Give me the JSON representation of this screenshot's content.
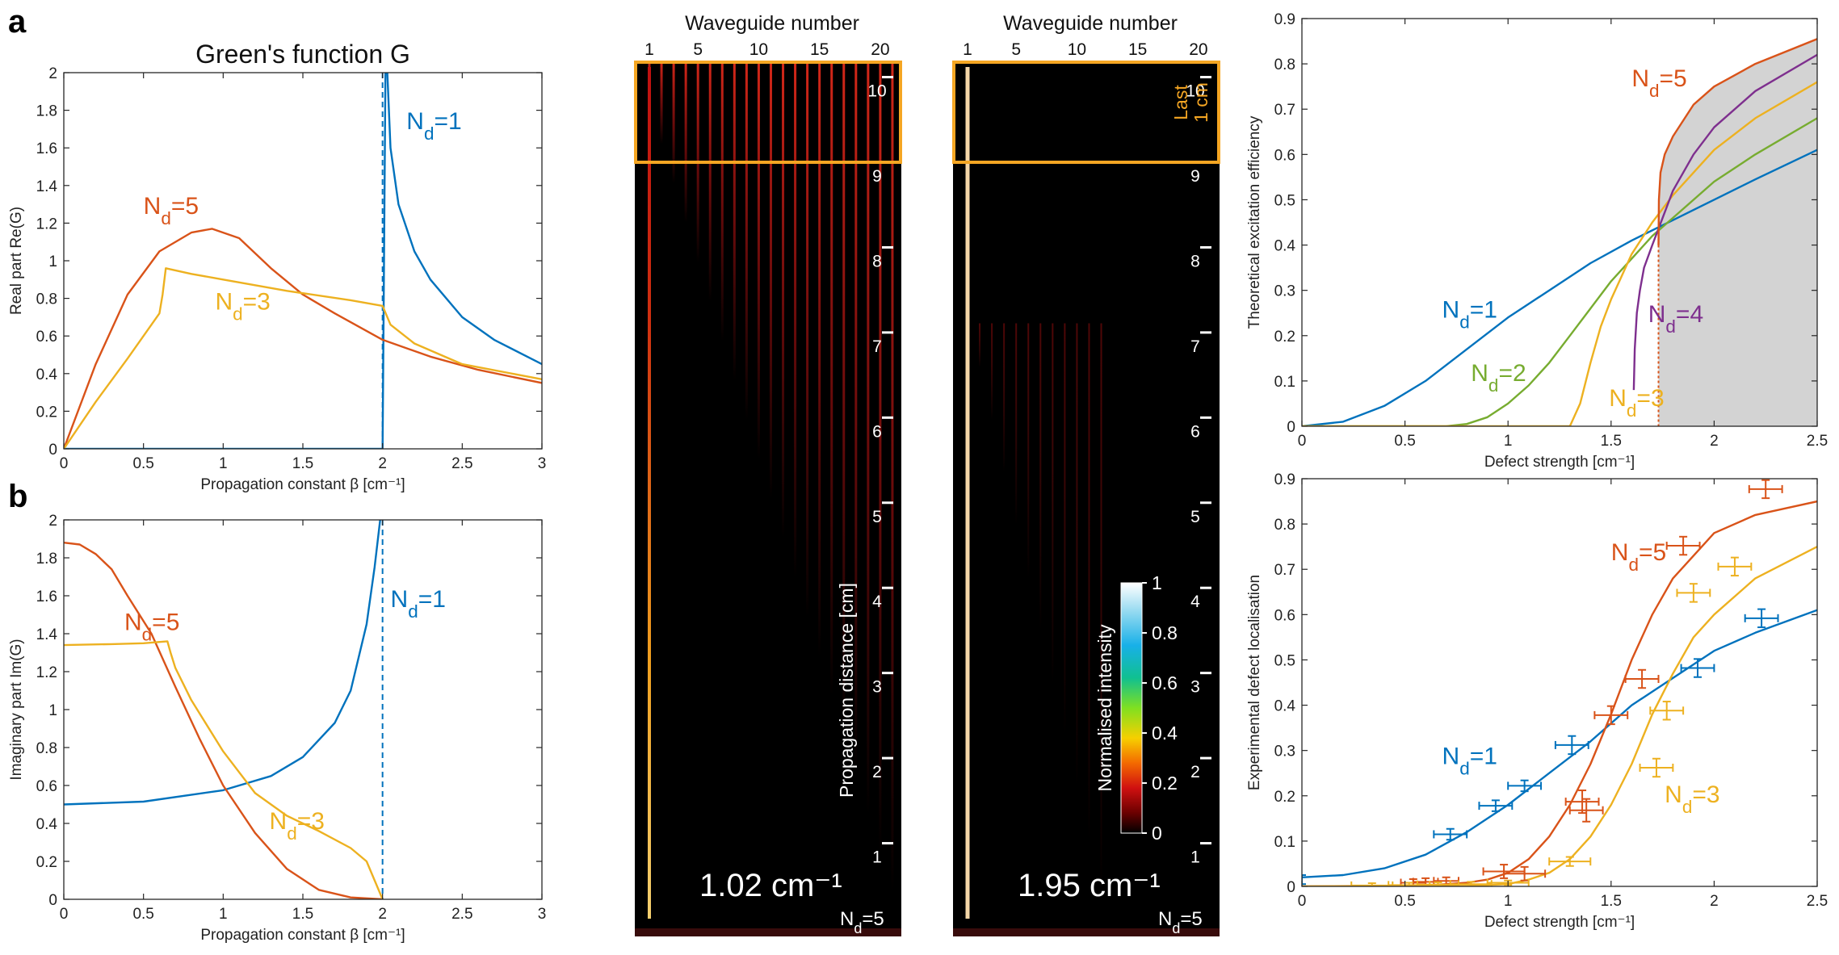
{
  "panel_labels": {
    "a": "a",
    "b": "b"
  },
  "chart_data": [
    {
      "id": "realG",
      "type": "line",
      "title": "Green's function G",
      "xlabel": "Propagation constant β [cm⁻¹]",
      "ylabel": "Real part Re(G)",
      "xlim": [
        0,
        3
      ],
      "ylim": [
        0,
        2
      ],
      "xticks": [
        0,
        0.5,
        1,
        1.5,
        2,
        2.5,
        3
      ],
      "yticks": [
        0,
        0.2,
        0.4,
        0.6,
        0.8,
        1,
        1.2,
        1.4,
        1.6,
        1.8,
        2
      ],
      "vline": {
        "x": 2,
        "color": "#0072bd"
      },
      "series": [
        {
          "name": "Nd=1",
          "color": "#0072bd",
          "x": [
            0,
            2,
            2.02,
            2.05,
            2.1,
            2.2,
            2.3,
            2.5,
            2.7,
            3
          ],
          "y": [
            0,
            0,
            2.2,
            1.6,
            1.3,
            1.05,
            0.9,
            0.7,
            0.58,
            0.45
          ]
        },
        {
          "name": "Nd=5",
          "color": "#d95319",
          "x": [
            0,
            0.2,
            0.4,
            0.6,
            0.8,
            0.93,
            1.1,
            1.3,
            1.5,
            1.7,
            2,
            2.3,
            2.6,
            3
          ],
          "y": [
            0,
            0.45,
            0.82,
            1.05,
            1.15,
            1.17,
            1.12,
            0.96,
            0.82,
            0.72,
            0.58,
            0.49,
            0.42,
            0.35
          ]
        },
        {
          "name": "Nd=3",
          "color": "#edb120",
          "x": [
            0,
            0.2,
            0.4,
            0.6,
            0.62,
            0.64,
            0.8,
            1,
            1.4,
            1.8,
            2,
            2.05,
            2.2,
            2.5,
            3
          ],
          "y": [
            0,
            0.25,
            0.48,
            0.72,
            0.82,
            0.96,
            0.93,
            0.9,
            0.84,
            0.79,
            0.76,
            0.66,
            0.56,
            0.45,
            0.37
          ]
        }
      ],
      "labels": [
        {
          "text": "Nd=1",
          "x": 2.15,
          "y": 1.7,
          "color": "#0072bd"
        },
        {
          "text": "Nd=5",
          "x": 0.5,
          "y": 1.25,
          "color": "#d95319"
        },
        {
          "text": "Nd=3",
          "x": 0.95,
          "y": 0.74,
          "color": "#edb120"
        }
      ]
    },
    {
      "id": "imagG",
      "type": "line",
      "title": "",
      "xlabel": "Propagation constant β [cm⁻¹]",
      "ylabel": "Imaginary part Im(G)",
      "xlim": [
        0,
        3
      ],
      "ylim": [
        0,
        2
      ],
      "xticks": [
        0,
        0.5,
        1,
        1.5,
        2,
        2.5,
        3
      ],
      "yticks": [
        0,
        0.2,
        0.4,
        0.6,
        0.8,
        1,
        1.2,
        1.4,
        1.6,
        1.8,
        2
      ],
      "vline": {
        "x": 2,
        "color": "#0072bd"
      },
      "series": [
        {
          "name": "Nd=1",
          "color": "#0072bd",
          "x": [
            0,
            0.5,
            1,
            1.3,
            1.5,
            1.7,
            1.8,
            1.9,
            1.95,
            1.985
          ],
          "y": [
            0.5,
            0.515,
            0.575,
            0.65,
            0.75,
            0.93,
            1.1,
            1.45,
            1.75,
            2
          ]
        },
        {
          "name": "Nd=5",
          "color": "#d95319",
          "x": [
            0,
            0.1,
            0.2,
            0.3,
            0.4,
            0.55,
            0.7,
            0.85,
            1,
            1.2,
            1.4,
            1.6,
            1.8,
            2
          ],
          "y": [
            1.88,
            1.87,
            1.82,
            1.74,
            1.6,
            1.4,
            1.12,
            0.85,
            0.6,
            0.35,
            0.16,
            0.05,
            0.01,
            0
          ]
        },
        {
          "name": "Nd=3",
          "color": "#edb120",
          "x": [
            0,
            0.3,
            0.5,
            0.65,
            0.67,
            0.7,
            0.8,
            1,
            1.2,
            1.4,
            1.6,
            1.8,
            1.9,
            2
          ],
          "y": [
            1.34,
            1.345,
            1.35,
            1.36,
            1.3,
            1.22,
            1.05,
            0.78,
            0.56,
            0.44,
            0.36,
            0.27,
            0.2,
            0
          ]
        }
      ],
      "labels": [
        {
          "text": "Nd=1",
          "x": 2.05,
          "y": 1.54,
          "color": "#0072bd"
        },
        {
          "text": "Nd=5",
          "x": 0.38,
          "y": 1.42,
          "color": "#d95319"
        },
        {
          "text": "Nd=3",
          "x": 1.29,
          "y": 0.37,
          "color": "#edb120"
        }
      ]
    },
    {
      "id": "theory",
      "type": "area",
      "title": "",
      "xlabel": "Defect strength [cm⁻¹]",
      "ylabel": "Theoretical excitation efficiency",
      "xlim": [
        0,
        2.5
      ],
      "ylim": [
        0,
        0.9
      ],
      "xticks": [
        0,
        0.5,
        1,
        1.5,
        2,
        2.5
      ],
      "yticks": [
        0,
        0.1,
        0.2,
        0.3,
        0.4,
        0.5,
        0.6,
        0.7,
        0.8,
        0.9
      ],
      "vline": {
        "x": 1.73,
        "y_top": 0.4,
        "color": "#d95319",
        "style": "dotted"
      },
      "shaded_area": {
        "x_start": 1.73,
        "color": "#d3d3d3"
      },
      "series": [
        {
          "name": "Nd=1",
          "color": "#0072bd",
          "x": [
            0,
            0.2,
            0.4,
            0.6,
            0.8,
            1,
            1.2,
            1.4,
            1.6,
            1.8,
            2,
            2.2,
            2.5
          ],
          "y": [
            0,
            0.01,
            0.045,
            0.1,
            0.17,
            0.24,
            0.3,
            0.36,
            0.41,
            0.455,
            0.5,
            0.545,
            0.61
          ]
        },
        {
          "name": "Nd=2",
          "color": "#77ac30",
          "x": [
            0,
            0.7,
            0.8,
            0.9,
            1,
            1.1,
            1.2,
            1.3,
            1.4,
            1.5,
            1.6,
            1.7,
            1.8,
            2,
            2.2,
            2.5
          ],
          "y": [
            0,
            0,
            0.005,
            0.02,
            0.05,
            0.09,
            0.14,
            0.2,
            0.26,
            0.32,
            0.37,
            0.42,
            0.46,
            0.54,
            0.6,
            0.68
          ]
        },
        {
          "name": "Nd=3",
          "color": "#edb120",
          "x": [
            0,
            1.3,
            1.35,
            1.4,
            1.45,
            1.5,
            1.55,
            1.6,
            1.7,
            1.8,
            2,
            2.2,
            2.5
          ],
          "y": [
            0,
            0,
            0.05,
            0.14,
            0.22,
            0.28,
            0.33,
            0.38,
            0.45,
            0.51,
            0.61,
            0.68,
            0.76
          ]
        },
        {
          "name": "Nd=4",
          "color": "#7e2f8e",
          "x": [
            1.61,
            1.615,
            1.625,
            1.64,
            1.66,
            1.7,
            1.75,
            1.8,
            1.9,
            2,
            2.2,
            2.5
          ],
          "y": [
            0.08,
            0.17,
            0.25,
            0.3,
            0.35,
            0.4,
            0.46,
            0.52,
            0.6,
            0.66,
            0.74,
            0.82
          ]
        },
        {
          "name": "Nd=5",
          "color": "#d95319",
          "x": [
            1.73,
            1.732,
            1.74,
            1.76,
            1.8,
            1.9,
            2,
            2.2,
            2.5
          ],
          "y": [
            0.4,
            0.5,
            0.56,
            0.6,
            0.64,
            0.71,
            0.75,
            0.8,
            0.855
          ]
        }
      ],
      "labels": [
        {
          "text": "Nd=5",
          "x": 1.6,
          "y": 0.75,
          "color": "#d95319"
        },
        {
          "text": "Nd=1",
          "x": 0.68,
          "y": 0.24,
          "color": "#0072bd"
        },
        {
          "text": "Nd=4",
          "x": 1.68,
          "y": 0.23,
          "color": "#7e2f8e"
        },
        {
          "text": "Nd=2",
          "x": 0.82,
          "y": 0.1,
          "color": "#77ac30"
        },
        {
          "text": "Nd=3",
          "x": 1.49,
          "y": 0.045,
          "color": "#edb120"
        }
      ]
    },
    {
      "id": "experiment",
      "type": "scatter",
      "title": "",
      "xlabel": "Defect strength [cm⁻¹]",
      "ylabel": "Experimental defect localisation",
      "xlim": [
        0,
        2.5
      ],
      "ylim": [
        0,
        0.9
      ],
      "xticks": [
        0,
        0.5,
        1,
        1.5,
        2,
        2.5
      ],
      "yticks": [
        0,
        0.1,
        0.2,
        0.3,
        0.4,
        0.5,
        0.6,
        0.7,
        0.8,
        0.9
      ],
      "series": [
        {
          "name": "Nd=1 fit",
          "color": "#0072bd",
          "x": [
            0,
            0.2,
            0.4,
            0.6,
            0.8,
            1,
            1.2,
            1.4,
            1.6,
            1.8,
            2,
            2.2,
            2.5
          ],
          "y": [
            0.02,
            0.025,
            0.04,
            0.07,
            0.12,
            0.18,
            0.25,
            0.32,
            0.4,
            0.46,
            0.52,
            0.56,
            0.61
          ]
        },
        {
          "name": "Nd=5 fit",
          "color": "#d95319",
          "x": [
            0,
            0.6,
            0.8,
            0.9,
            1,
            1.1,
            1.2,
            1.3,
            1.4,
            1.5,
            1.6,
            1.7,
            1.8,
            2,
            2.2,
            2.5
          ],
          "y": [
            0,
            0.002,
            0.008,
            0.015,
            0.03,
            0.06,
            0.11,
            0.18,
            0.27,
            0.38,
            0.5,
            0.6,
            0.68,
            0.78,
            0.82,
            0.85
          ]
        },
        {
          "name": "Nd=3 fit",
          "color": "#edb120",
          "x": [
            0,
            0.8,
            1,
            1.1,
            1.2,
            1.3,
            1.4,
            1.5,
            1.6,
            1.7,
            1.8,
            1.9,
            2,
            2.2,
            2.5
          ],
          "y": [
            0,
            0.001,
            0.005,
            0.015,
            0.03,
            0.06,
            0.11,
            0.18,
            0.27,
            0.38,
            0.47,
            0.55,
            0.6,
            0.68,
            0.75
          ]
        }
      ],
      "points": [
        {
          "color": "#0072bd",
          "x": [
            0,
            0.72,
            0.94,
            1.08,
            1.31,
            1.92,
            2.23
          ],
          "y": [
            0.015,
            0.115,
            0.178,
            0.222,
            0.312,
            0.482,
            0.592
          ],
          "xerr": [
            0,
            0.08,
            0.08,
            0.08,
            0.08,
            0.08,
            0.08
          ],
          "yerr": [
            0.01,
            0.012,
            0.012,
            0.012,
            0.02,
            0.02,
            0.02
          ]
        },
        {
          "color": "#d95319",
          "x": [
            0.54,
            0.6,
            0.7,
            0.98,
            1.08,
            1.36,
            1.38,
            1.5,
            1.65,
            1.85,
            2.25
          ],
          "y": [
            0.008,
            0.01,
            0.012,
            0.033,
            0.028,
            0.187,
            0.168,
            0.378,
            0.458,
            0.752,
            0.877
          ],
          "xerr": [
            0.06,
            0.06,
            0.06,
            0.1,
            0.1,
            0.08,
            0.08,
            0.08,
            0.08,
            0.08,
            0.08
          ],
          "yerr": [
            0.008,
            0.008,
            0.008,
            0.015,
            0.015,
            0.025,
            0.025,
            0.02,
            0.02,
            0.02,
            0.02
          ]
        },
        {
          "color": "#edb120",
          "x": [
            0.34,
            0.52,
            0.66,
            0.82,
            1.0,
            1.3,
            1.72,
            1.77,
            1.9,
            2.1
          ],
          "y": [
            0.002,
            0.003,
            0.004,
            0.005,
            0.008,
            0.055,
            0.262,
            0.388,
            0.648,
            0.706
          ],
          "xerr": [
            0.1,
            0.1,
            0.1,
            0.1,
            0.1,
            0.1,
            0.08,
            0.08,
            0.08,
            0.08
          ],
          "yerr": [
            0.005,
            0.005,
            0.005,
            0.005,
            0.005,
            0.01,
            0.02,
            0.02,
            0.02,
            0.02
          ]
        }
      ],
      "labels": [
        {
          "text": "Nd=5",
          "x": 1.5,
          "y": 0.72,
          "color": "#d95319"
        },
        {
          "text": "Nd=1",
          "x": 0.68,
          "y": 0.27,
          "color": "#0072bd"
        },
        {
          "text": "Nd=3",
          "x": 1.76,
          "y": 0.185,
          "color": "#edb120"
        }
      ]
    }
  ],
  "heatmaps": [
    {
      "id": "heat1",
      "top_label": "Waveguide number",
      "xticks": [
        "1",
        "5",
        "10",
        "15",
        "20"
      ],
      "distance_ticks": [
        "1",
        "2",
        "3",
        "4",
        "5",
        "6",
        "7",
        "8",
        "9",
        "10"
      ],
      "value_label": "1.02 cm⁻¹",
      "nd_label": "Nd=5",
      "ylabel": "Propagation distance [cm]",
      "waveguides": 21,
      "defect_waveguide": 1
    },
    {
      "id": "heat2",
      "top_label": "Waveguide number",
      "xticks": [
        "1",
        "5",
        "10",
        "15",
        "20"
      ],
      "distance_ticks": [
        "1",
        "2",
        "3",
        "4",
        "5",
        "6",
        "7",
        "8",
        "9",
        "10"
      ],
      "value_label": "1.95 cm⁻¹",
      "nd_label": "Nd=5",
      "box_label_line1": "Last",
      "box_label_line2": "1 cm",
      "waveguides": 21,
      "defect_waveguide": 1
    }
  ],
  "colorbar": {
    "label": "Normalised intensity",
    "ticks": [
      "0",
      "0.2",
      "0.4",
      "0.6",
      "0.8",
      "1"
    ]
  },
  "colors": {
    "box": "#f5a623"
  }
}
